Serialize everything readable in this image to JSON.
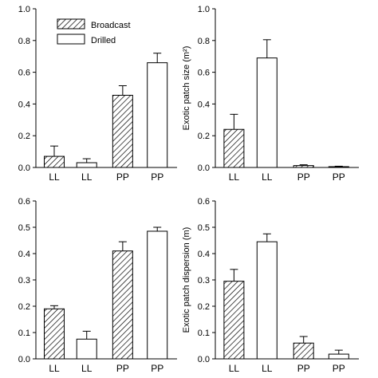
{
  "chart_data": [
    {
      "type": "bar",
      "categories": [
        "LL",
        "LL",
        "PP",
        "PP"
      ],
      "series": [
        {
          "name": "Broadcast",
          "bars": [
            0,
            2
          ],
          "pattern": "hatched"
        },
        {
          "name": "Drilled",
          "bars": [
            1,
            3
          ],
          "pattern": "open"
        }
      ],
      "values": [
        0.07,
        0.03,
        0.455,
        0.66
      ],
      "errors": [
        0.065,
        0.025,
        0.06,
        0.06
      ],
      "ylim": [
        0,
        1.0
      ],
      "yticks": [
        "0.0",
        "0.2",
        "0.4",
        "0.6",
        "0.8",
        "1.0"
      ],
      "ylabel": "",
      "legend": "top-left"
    },
    {
      "type": "bar",
      "categories": [
        "LL",
        "LL",
        "PP",
        "PP"
      ],
      "values": [
        0.24,
        0.69,
        0.012,
        0.005
      ],
      "errors": [
        0.095,
        0.115,
        0.005,
        0.003
      ],
      "ylim": [
        0,
        1.0
      ],
      "yticks": [
        "0.0",
        "0.2",
        "0.4",
        "0.6",
        "0.8",
        "1.0"
      ],
      "ylabel": "Exotic patch size (m²)"
    },
    {
      "type": "bar",
      "categories": [
        "LL",
        "LL",
        "PP",
        "PP"
      ],
      "values": [
        0.19,
        0.075,
        0.41,
        0.485
      ],
      "errors": [
        0.012,
        0.03,
        0.035,
        0.015
      ],
      "ylim": [
        0,
        0.6
      ],
      "yticks": [
        "0.0",
        "0.1",
        "0.2",
        "0.3",
        "0.4",
        "0.5",
        "0.6"
      ],
      "ylabel": ""
    },
    {
      "type": "bar",
      "categories": [
        "LL",
        "LL",
        "PP",
        "PP"
      ],
      "values": [
        0.295,
        0.445,
        0.06,
        0.018
      ],
      "errors": [
        0.045,
        0.03,
        0.025,
        0.015
      ],
      "ylim": [
        0,
        0.6
      ],
      "yticks": [
        "0.0",
        "0.1",
        "0.2",
        "0.3",
        "0.4",
        "0.5",
        "0.6"
      ],
      "ylabel": "Exotic patch dispersion (m)"
    }
  ],
  "colors": {
    "ink": "#000000",
    "open_fill": "#ffffff"
  }
}
